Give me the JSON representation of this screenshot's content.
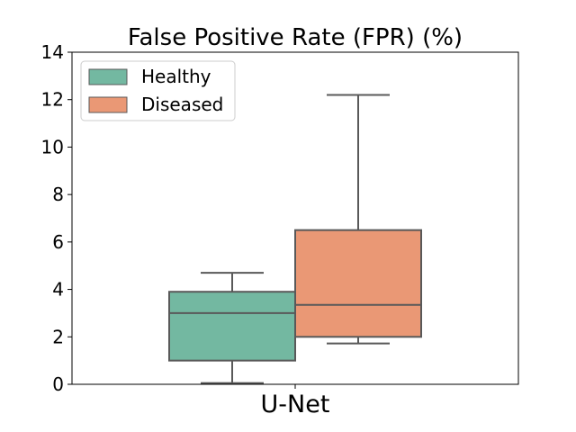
{
  "chart_data": {
    "type": "box",
    "title": "False Positive Rate (FPR) (%)",
    "xlabel": "",
    "ylabel": "",
    "categories": [
      "U-Net"
    ],
    "ylim": [
      0,
      14
    ],
    "yticks": [
      0,
      2,
      4,
      6,
      8,
      10,
      12,
      14
    ],
    "grid": false,
    "legend_position": "top-left",
    "series": [
      {
        "name": "Healthy",
        "color": "#73b8a1",
        "whisker_low": 0.05,
        "q1": 1.0,
        "median": 3.0,
        "q3": 3.9,
        "whisker_high": 4.7
      },
      {
        "name": "Diseased",
        "color": "#ea9875",
        "whisker_low": 1.72,
        "q1": 2.0,
        "median": 3.35,
        "q3": 6.5,
        "whisker_high": 12.2
      }
    ]
  }
}
